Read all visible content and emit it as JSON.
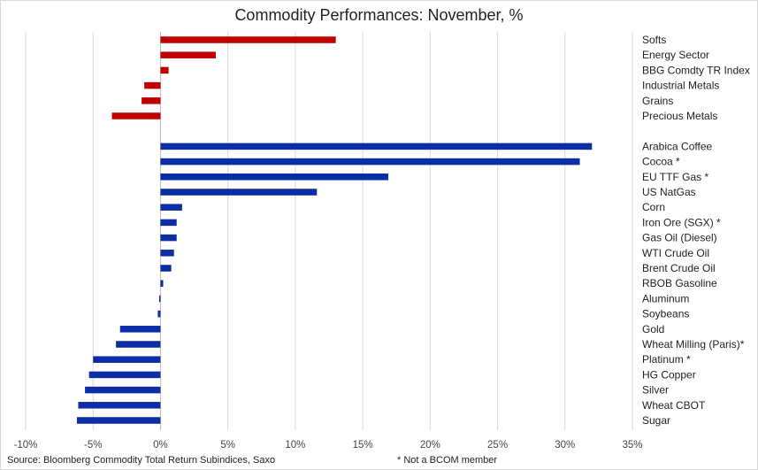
{
  "chart_data": {
    "type": "bar",
    "orientation": "horizontal",
    "title": "Commodity Performances: November, %",
    "xlim": [
      -10,
      35
    ],
    "xticks": [
      "-10%",
      "-5%",
      "0%",
      "5%",
      "10%",
      "15%",
      "20%",
      "25%",
      "30%",
      "35%"
    ],
    "grid": "vertical",
    "groups": [
      {
        "color": "#c00000",
        "bars": [
          {
            "label": "Softs",
            "value": 13.0
          },
          {
            "label": "Energy Sector",
            "value": 4.1
          },
          {
            "label": "BBG Comdty TR Index",
            "value": 0.6
          },
          {
            "label": "Industrial Metals",
            "value": -1.2
          },
          {
            "label": "Grains",
            "value": -1.4
          },
          {
            "label": "Precious Metals",
            "value": -3.6
          }
        ]
      },
      {
        "color": "#0b2ea5",
        "bars": [
          {
            "label": "Arabica Coffee",
            "value": 32.0
          },
          {
            "label": "Cocoa *",
            "value": 31.1
          },
          {
            "label": "EU TTF Gas *",
            "value": 16.9
          },
          {
            "label": "US NatGas",
            "value": 11.6
          },
          {
            "label": "Corn",
            "value": 1.6
          },
          {
            "label": "Iron Ore (SGX) *",
            "value": 1.2
          },
          {
            "label": "Gas Oil (Diesel)",
            "value": 1.2
          },
          {
            "label": "WTI Crude Oil",
            "value": 1.0
          },
          {
            "label": "Brent Crude Oil",
            "value": 0.8
          },
          {
            "label": "RBOB Gasoline",
            "value": 0.2
          },
          {
            "label": "Aluminum",
            "value": -0.1
          },
          {
            "label": "Soybeans",
            "value": -0.2
          },
          {
            "label": "Gold",
            "value": -3.0
          },
          {
            "label": "Wheat Milling (Paris)*",
            "value": -3.3
          },
          {
            "label": "Platinum *",
            "value": -5.0
          },
          {
            "label": "HG Copper",
            "value": -5.3
          },
          {
            "label": "Silver",
            "value": -5.6
          },
          {
            "label": "Wheat CBOT",
            "value": -6.1
          },
          {
            "label": "Sugar",
            "value": -6.2
          }
        ]
      }
    ]
  },
  "footer": {
    "source": "Source: Bloomberg Commodity Total Return Subindices, Saxo",
    "note": "* Not a BCOM member"
  }
}
